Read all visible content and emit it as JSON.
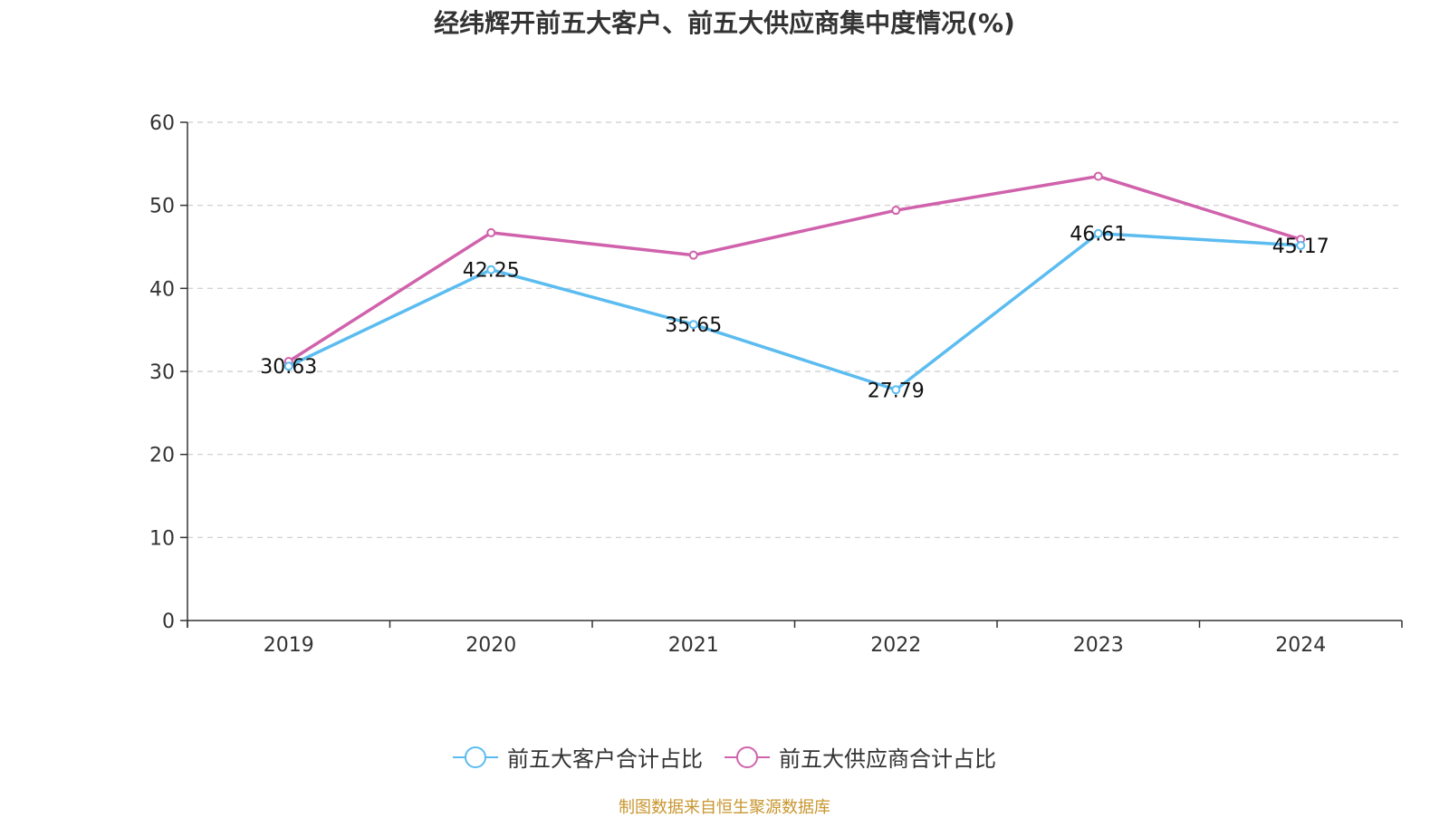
{
  "chart_data": {
    "type": "line",
    "title": "经纬辉开前五大客户、前五大供应商集中度情况(%)",
    "categories": [
      "2019",
      "2020",
      "2021",
      "2022",
      "2023",
      "2024"
    ],
    "series": [
      {
        "name": "前五大客户合计占比",
        "color": "#5bbcf0",
        "values": [
          30.63,
          42.25,
          35.65,
          27.79,
          46.61,
          45.17
        ],
        "show_labels": true
      },
      {
        "name": "前五大供应商合计占比",
        "color": "#d062ac",
        "values": [
          31.2,
          46.7,
          44.0,
          49.4,
          53.5,
          45.9
        ],
        "show_labels": false
      }
    ],
    "ylim": [
      0,
      60
    ],
    "yticks": [
      0,
      10,
      20,
      30,
      40,
      50,
      60
    ],
    "grid": true,
    "legend_position": "bottom"
  },
  "source_note": "制图数据来自恒生聚源数据库",
  "source_note_color": "#c8962e"
}
